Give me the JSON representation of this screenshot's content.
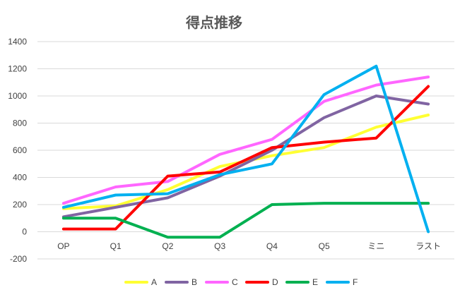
{
  "chart_data": {
    "type": "line",
    "title": "得点推移",
    "xlabel": "",
    "ylabel": "",
    "categories": [
      "OP",
      "Q1",
      "Q2",
      "Q3",
      "Q4",
      "Q5",
      "ミニ",
      "ラスト"
    ],
    "ylim": [
      -200,
      1400
    ],
    "yticks": [
      -200,
      0,
      200,
      400,
      600,
      800,
      1000,
      1200,
      1400
    ],
    "grid": true,
    "legend_position": "bottom",
    "series": [
      {
        "name": "A",
        "color": "#FFFF33",
        "values": [
          170,
          190,
          310,
          480,
          560,
          620,
          770,
          860
        ]
      },
      {
        "name": "B",
        "color": "#8064A2",
        "values": [
          110,
          180,
          250,
          410,
          600,
          840,
          1000,
          940
        ]
      },
      {
        "name": "C",
        "color": "#FF66FF",
        "values": [
          210,
          330,
          370,
          570,
          680,
          960,
          1080,
          1140
        ]
      },
      {
        "name": "D",
        "color": "#FF0000",
        "values": [
          20,
          20,
          410,
          440,
          620,
          660,
          690,
          1070
        ]
      },
      {
        "name": "E",
        "color": "#00B050",
        "values": [
          100,
          100,
          -40,
          -40,
          200,
          210,
          210,
          210
        ]
      },
      {
        "name": "F",
        "color": "#00B0F0",
        "values": [
          180,
          270,
          280,
          420,
          500,
          1010,
          1220,
          0
        ]
      }
    ]
  }
}
